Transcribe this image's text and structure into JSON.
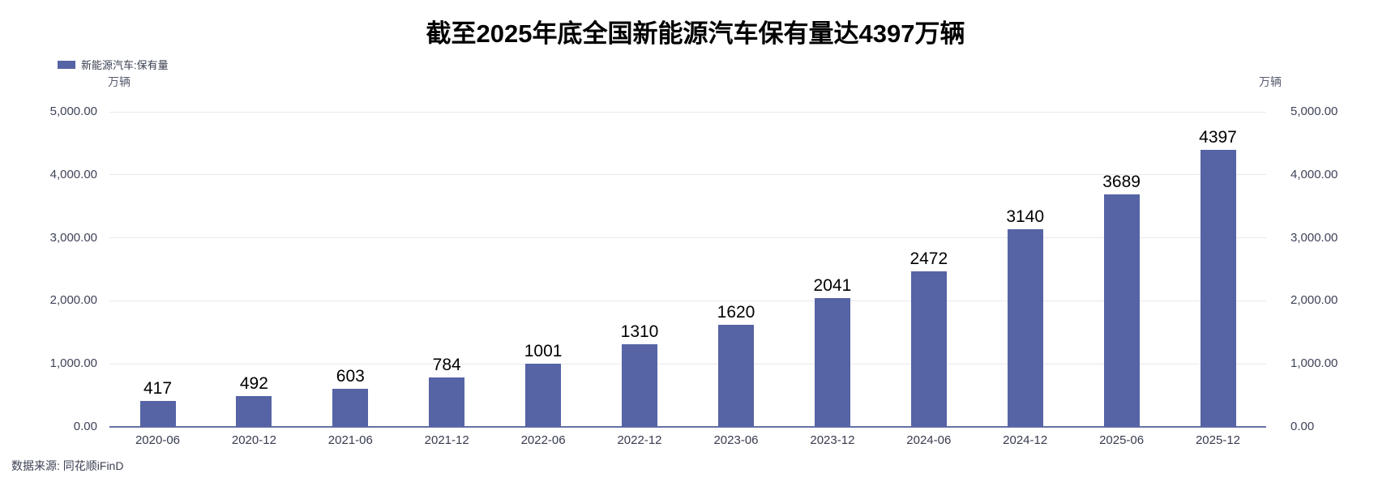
{
  "page": {
    "title": "截至2025年底全国新能源汽车保有量达4397万辆",
    "source": "数据来源: 同花顺iFinD"
  },
  "legend": {
    "label": "新能源汽车:保有量",
    "swatch_color": "#5663A4"
  },
  "units": {
    "left": "万辆",
    "right": "万辆"
  },
  "chart_data": {
    "type": "bar",
    "title": "截至2025年底全国新能源汽车保有量达4397万辆",
    "categories": [
      "2020-06",
      "2020-12",
      "2021-06",
      "2021-12",
      "2022-06",
      "2022-12",
      "2023-06",
      "2023-12",
      "2024-06",
      "2024-12",
      "2025-06",
      "2025-12"
    ],
    "series": [
      {
        "name": "新能源汽车:保有量",
        "values": [
          417,
          492,
          603,
          784,
          1001,
          1310,
          1620,
          2041,
          2472,
          3140,
          3689,
          4397
        ]
      }
    ],
    "value_labels": true,
    "xlabel": "",
    "ylabel": "万辆",
    "ylabel_right": "万辆",
    "ylim": [
      0,
      5000
    ],
    "yticks": [
      {
        "value": 5000,
        "label": "5,000.00"
      },
      {
        "value": 4000,
        "label": "4,000.00"
      },
      {
        "value": 3000,
        "label": "3,000.00"
      },
      {
        "value": 2000,
        "label": "2,000.00"
      },
      {
        "value": 1000,
        "label": "1,000.00"
      },
      {
        "value": 0,
        "label": "0.00"
      }
    ],
    "grid": true,
    "dual_axis_labels": true,
    "legend_position": "top-left",
    "bar_color": "#5663A4"
  },
  "colors": {
    "bar": "#5663A4",
    "grid": "#E9E9ED",
    "baseline": "#6670A6",
    "tick_label": "#3F4358",
    "value_label": "#000000",
    "title": "#000000",
    "source": "#3C4053"
  }
}
